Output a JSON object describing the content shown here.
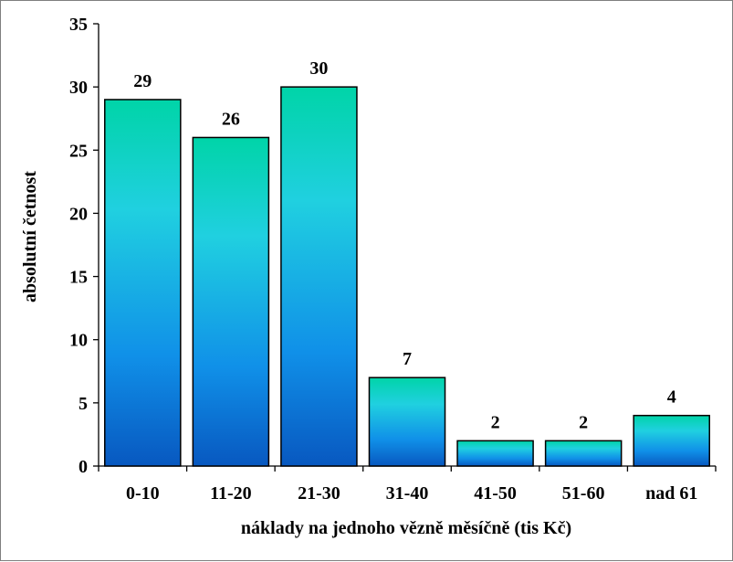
{
  "chart_data": {
    "type": "bar",
    "categories": [
      "0-10",
      "11-20",
      "21-30",
      "31-40",
      "41-50",
      "51-60",
      "nad 61"
    ],
    "values": [
      29,
      26,
      30,
      7,
      2,
      2,
      4
    ],
    "data_labels": [
      "29",
      "26",
      "30",
      "7",
      "2",
      "2",
      "4"
    ],
    "xlabel": "náklady na jednoho vězně měsíčně (tis Kč)",
    "ylabel": "absolutní četnost",
    "ylim": [
      0,
      35
    ],
    "yticks": [
      "0",
      "5",
      "10",
      "15",
      "20",
      "25",
      "30",
      "35"
    ],
    "grid": false,
    "legend": "none",
    "colors": {
      "bar_top": "#00d4a8",
      "bar_mid": "#20d0e0",
      "bar_lower": "#1090e8",
      "bar_bottom": "#0858c0",
      "bar_outline": "#000000"
    }
  }
}
